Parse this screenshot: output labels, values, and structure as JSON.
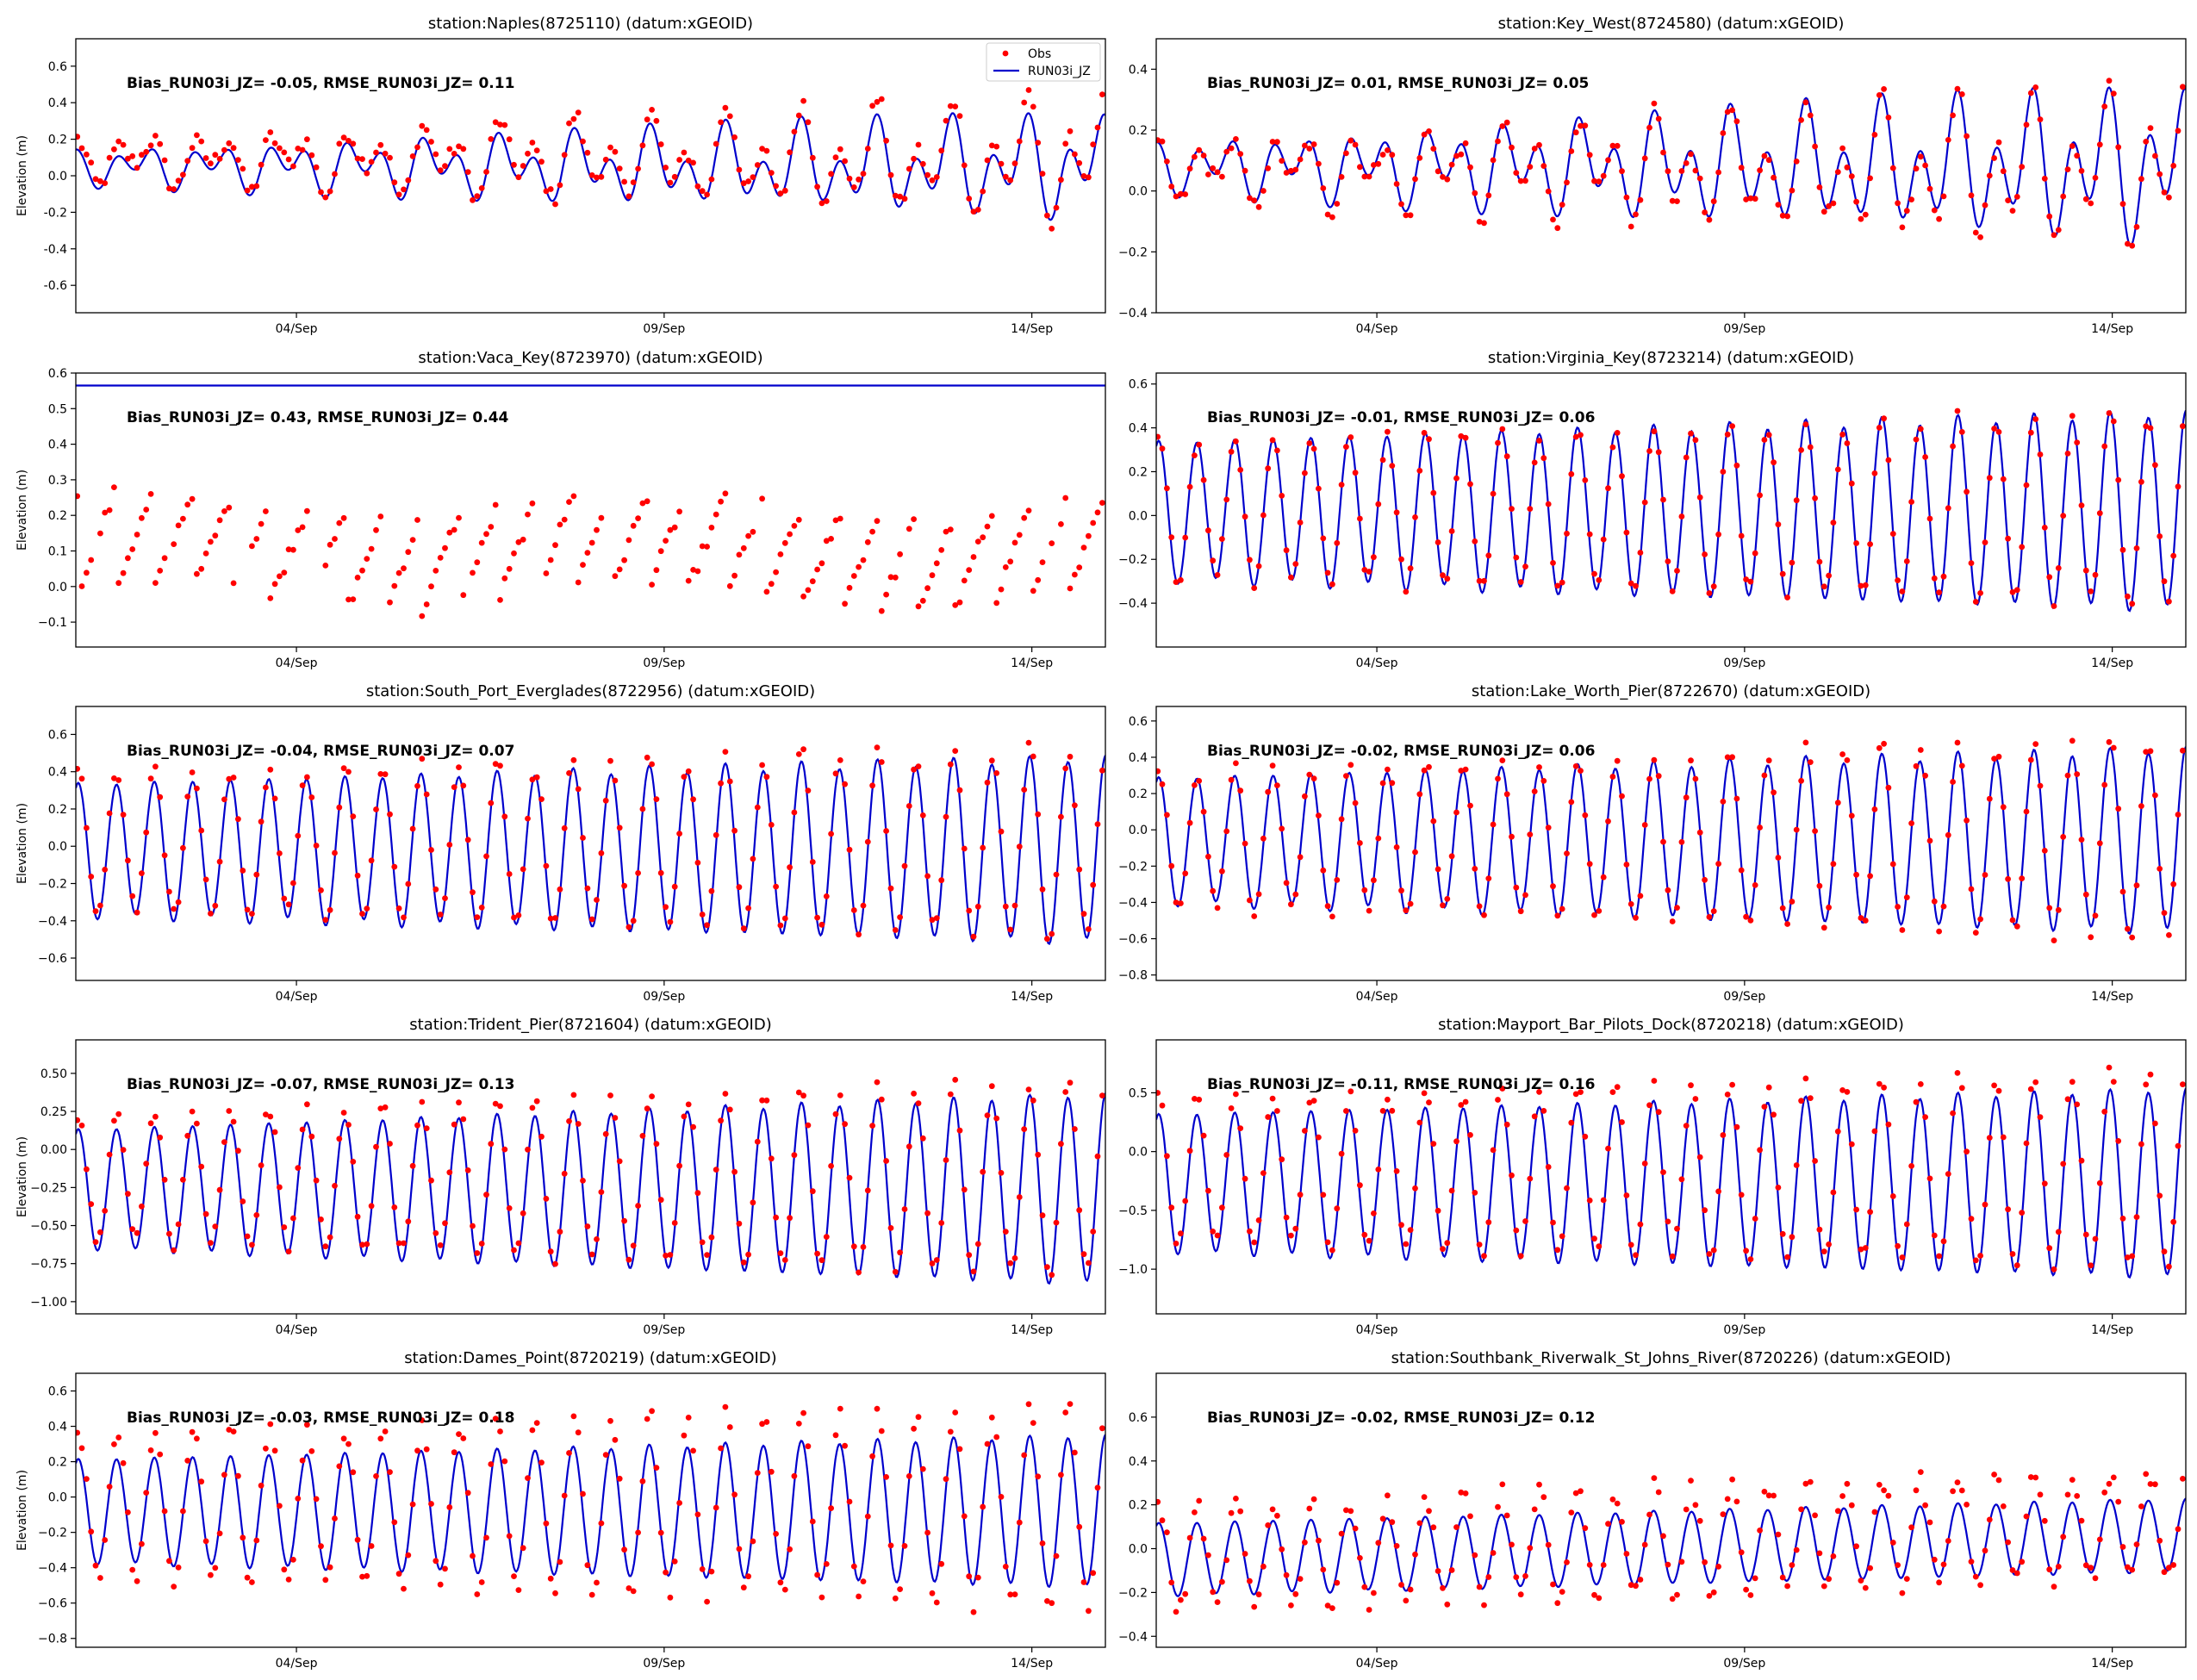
{
  "figure": {
    "ylabel": "Elevation (m)",
    "legend": {
      "obs_label": "Obs",
      "model_label": "RUN03i_JZ",
      "obs_color": "#ff0000",
      "model_color": "#0000cc",
      "placement": "top-right of first panel"
    }
  },
  "chart_data": [
    {
      "type": "line",
      "title": "station:Naples(8725110) (datum:xGEOID)",
      "stats": "Bias_RUN03i_JZ= -0.05, RMSE_RUN03i_JZ=  0.11",
      "xlabel": "",
      "ylabel": "Elevation (m)",
      "x_range_days": [
        1.0,
        15.0
      ],
      "xticks": [
        {
          "value": 4,
          "label": "04/Sep"
        },
        {
          "value": 9,
          "label": "09/Sep"
        },
        {
          "value": 14,
          "label": "14/Sep"
        }
      ],
      "ylim": [
        -0.75,
        0.75
      ],
      "yticks": [
        {
          "value": -0.6,
          "label": "-0.6"
        },
        {
          "value": -0.4,
          "label": "-0.4"
        },
        {
          "value": -0.2,
          "label": "-0.2"
        },
        {
          "value": 0.0,
          "label": "0.0"
        },
        {
          "value": 0.2,
          "label": "0.2"
        },
        {
          "value": 0.4,
          "label": "0.4"
        },
        {
          "value": 0.6,
          "label": "0.6"
        }
      ],
      "model": {
        "name": "RUN03i_JZ",
        "mean": 0.05,
        "amp_start": 0.12,
        "amp_end": 0.34,
        "semi_diurnal_share": 0.55,
        "flat": false
      },
      "obs": {
        "name": "Obs",
        "offset": 0.04,
        "amp_scale": 1.15,
        "noise": 0.05,
        "phase_shift": 0.08
      },
      "show_legend": true
    },
    {
      "type": "line",
      "title": "station:Key_West(8724580) (datum:xGEOID)",
      "stats": "Bias_RUN03i_JZ=  0.01, RMSE_RUN03i_JZ=  0.05",
      "xlabel": "",
      "ylabel": "",
      "x_range_days": [
        1.0,
        15.0
      ],
      "xticks": [
        {
          "value": 4,
          "label": "04/Sep"
        },
        {
          "value": 9,
          "label": "09/Sep"
        },
        {
          "value": 14,
          "label": "14/Sep"
        }
      ],
      "ylim": [
        -0.4,
        0.5
      ],
      "yticks": [
        {
          "value": -0.4,
          "label": "−0.4"
        },
        {
          "value": -0.2,
          "label": "−0.2"
        },
        {
          "value": 0.0,
          "label": "0.0"
        },
        {
          "value": 0.2,
          "label": "0.2"
        },
        {
          "value": 0.4,
          "label": "0.4"
        }
      ],
      "model": {
        "name": "RUN03i_JZ",
        "mean": 0.08,
        "amp_start": 0.1,
        "amp_end": 0.3,
        "semi_diurnal_share": 0.6,
        "flat": false
      },
      "obs": {
        "name": "Obs",
        "offset": -0.01,
        "amp_scale": 1.05,
        "noise": 0.03,
        "phase_shift": 0.05
      },
      "show_legend": false
    },
    {
      "type": "line",
      "title": "station:Vaca_Key(8723970) (datum:xGEOID)",
      "stats": "Bias_RUN03i_JZ=  0.43, RMSE_RUN03i_JZ=  0.44",
      "xlabel": "",
      "ylabel": "Elevation (m)",
      "x_range_days": [
        1.0,
        15.0
      ],
      "xticks": [
        {
          "value": 4,
          "label": "04/Sep"
        },
        {
          "value": 9,
          "label": "09/Sep"
        },
        {
          "value": 14,
          "label": "14/Sep"
        }
      ],
      "ylim": [
        -0.17,
        0.6
      ],
      "yticks": [
        {
          "value": -0.1,
          "label": "−0.1"
        },
        {
          "value": 0.0,
          "label": "0.0"
        },
        {
          "value": 0.1,
          "label": "0.1"
        },
        {
          "value": 0.2,
          "label": "0.2"
        },
        {
          "value": 0.3,
          "label": "0.3"
        },
        {
          "value": 0.4,
          "label": "0.4"
        },
        {
          "value": 0.5,
          "label": "0.5"
        },
        {
          "value": 0.6,
          "label": "0.6"
        }
      ],
      "model": {
        "name": "RUN03i_JZ",
        "mean": 0.565,
        "amp_start": 0.0,
        "amp_end": 0.0,
        "semi_diurnal_share": 0.0,
        "flat": true
      },
      "obs": {
        "name": "Obs",
        "offset": 0.0,
        "amp_scale": 1.0,
        "noise": 0.02,
        "phase_shift": 0.0,
        "sawtooth": true,
        "saw_mean": 0.1,
        "saw_amp": 0.14
      },
      "show_legend": false
    },
    {
      "type": "line",
      "title": "station:Virginia_Key(8723214) (datum:xGEOID)",
      "stats": "Bias_RUN03i_JZ= -0.01, RMSE_RUN03i_JZ=  0.06",
      "xlabel": "",
      "ylabel": "",
      "x_range_days": [
        1.0,
        15.0
      ],
      "xticks": [
        {
          "value": 4,
          "label": "04/Sep"
        },
        {
          "value": 9,
          "label": "09/Sep"
        },
        {
          "value": 14,
          "label": "14/Sep"
        }
      ],
      "ylim": [
        -0.6,
        0.65
      ],
      "yticks": [
        {
          "value": -0.4,
          "label": "−0.4"
        },
        {
          "value": -0.2,
          "label": "−0.2"
        },
        {
          "value": 0.0,
          "label": "0.0"
        },
        {
          "value": 0.2,
          "label": "0.2"
        },
        {
          "value": 0.4,
          "label": "0.4"
        },
        {
          "value": 0.6,
          "label": "0.6"
        }
      ],
      "model": {
        "name": "RUN03i_JZ",
        "mean": 0.02,
        "amp_start": 0.33,
        "amp_end": 0.47,
        "semi_diurnal_share": 0.95,
        "flat": false
      },
      "obs": {
        "name": "Obs",
        "offset": 0.01,
        "amp_scale": 0.97,
        "noise": 0.03,
        "phase_shift": 0.03
      },
      "show_legend": false
    },
    {
      "type": "line",
      "title": "station:South_Port_Everglades(8722956) (datum:xGEOID)",
      "stats": "Bias_RUN03i_JZ= -0.04, RMSE_RUN03i_JZ=  0.07",
      "xlabel": "",
      "ylabel": "Elevation (m)",
      "x_range_days": [
        1.0,
        15.0
      ],
      "xticks": [
        {
          "value": 4,
          "label": "04/Sep"
        },
        {
          "value": 9,
          "label": "09/Sep"
        },
        {
          "value": 14,
          "label": "14/Sep"
        }
      ],
      "ylim": [
        -0.72,
        0.75
      ],
      "yticks": [
        {
          "value": -0.6,
          "label": "−0.6"
        },
        {
          "value": -0.4,
          "label": "−0.4"
        },
        {
          "value": -0.2,
          "label": "−0.2"
        },
        {
          "value": 0.0,
          "label": "0.0"
        },
        {
          "value": 0.2,
          "label": "0.2"
        },
        {
          "value": 0.4,
          "label": "0.4"
        },
        {
          "value": 0.6,
          "label": "0.6"
        }
      ],
      "model": {
        "name": "RUN03i_JZ",
        "mean": -0.02,
        "amp_start": 0.37,
        "amp_end": 0.52,
        "semi_diurnal_share": 0.95,
        "flat": false
      },
      "obs": {
        "name": "Obs",
        "offset": 0.04,
        "amp_scale": 1.02,
        "noise": 0.04,
        "phase_shift": 0.03
      },
      "show_legend": false
    },
    {
      "type": "line",
      "title": "station:Lake_Worth_Pier(8722670) (datum:xGEOID)",
      "stats": "Bias_RUN03i_JZ= -0.02, RMSE_RUN03i_JZ=  0.06",
      "xlabel": "",
      "ylabel": "",
      "x_range_days": [
        1.0,
        15.0
      ],
      "xticks": [
        {
          "value": 4,
          "label": "04/Sep"
        },
        {
          "value": 9,
          "label": "09/Sep"
        },
        {
          "value": 14,
          "label": "14/Sep"
        }
      ],
      "ylim": [
        -0.83,
        0.68
      ],
      "yticks": [
        {
          "value": -0.8,
          "label": "−0.8"
        },
        {
          "value": -0.6,
          "label": "−0.6"
        },
        {
          "value": -0.4,
          "label": "−0.4"
        },
        {
          "value": -0.2,
          "label": "−0.2"
        },
        {
          "value": 0.0,
          "label": "0.0"
        },
        {
          "value": 0.2,
          "label": "0.2"
        },
        {
          "value": 0.4,
          "label": "0.4"
        },
        {
          "value": 0.6,
          "label": "0.6"
        }
      ],
      "model": {
        "name": "RUN03i_JZ",
        "mean": -0.06,
        "amp_start": 0.36,
        "amp_end": 0.53,
        "semi_diurnal_share": 0.95,
        "flat": false
      },
      "obs": {
        "name": "Obs",
        "offset": 0.01,
        "amp_scale": 1.08,
        "noise": 0.04,
        "phase_shift": 0.03
      },
      "show_legend": false
    },
    {
      "type": "line",
      "title": "station:Trident_Pier(8721604) (datum:xGEOID)",
      "stats": "Bias_RUN03i_JZ= -0.07, RMSE_RUN03i_JZ=  0.13",
      "xlabel": "",
      "ylabel": "Elevation (m)",
      "x_range_days": [
        1.0,
        15.0
      ],
      "xticks": [
        {
          "value": 4,
          "label": "04/Sep"
        },
        {
          "value": 9,
          "label": "09/Sep"
        },
        {
          "value": 14,
          "label": "14/Sep"
        }
      ],
      "ylim": [
        -1.08,
        0.72
      ],
      "yticks": [
        {
          "value": -1.0,
          "label": "−1.00"
        },
        {
          "value": -0.75,
          "label": "−0.75"
        },
        {
          "value": -0.5,
          "label": "−0.50"
        },
        {
          "value": -0.25,
          "label": "−0.25"
        },
        {
          "value": 0.0,
          "label": "0.00"
        },
        {
          "value": 0.25,
          "label": "0.25"
        },
        {
          "value": 0.5,
          "label": "0.50"
        }
      ],
      "model": {
        "name": "RUN03i_JZ",
        "mean": -0.26,
        "amp_start": 0.4,
        "amp_end": 0.64,
        "semi_diurnal_share": 0.97,
        "flat": false
      },
      "obs": {
        "name": "Obs",
        "offset": 0.07,
        "amp_scale": 1.03,
        "noise": 0.05,
        "phase_shift": 0.04
      },
      "show_legend": false
    },
    {
      "type": "line",
      "title": "station:Mayport_Bar_Pilots_Dock(8720218) (datum:xGEOID)",
      "stats": "Bias_RUN03i_JZ= -0.11, RMSE_RUN03i_JZ=  0.16",
      "xlabel": "",
      "ylabel": "",
      "x_range_days": [
        1.0,
        15.0
      ],
      "xticks": [
        {
          "value": 4,
          "label": "04/Sep"
        },
        {
          "value": 9,
          "label": "09/Sep"
        },
        {
          "value": 14,
          "label": "14/Sep"
        }
      ],
      "ylim": [
        -1.38,
        0.95
      ],
      "yticks": [
        {
          "value": -1.0,
          "label": "−1.0"
        },
        {
          "value": -0.5,
          "label": "−0.5"
        },
        {
          "value": 0.0,
          "label": "0.0"
        },
        {
          "value": 0.5,
          "label": "0.5"
        }
      ],
      "model": {
        "name": "RUN03i_JZ",
        "mean": -0.27,
        "amp_start": 0.6,
        "amp_end": 0.82,
        "semi_diurnal_share": 0.97,
        "flat": false
      },
      "obs": {
        "name": "Obs",
        "offset": 0.11,
        "amp_scale": 1.05,
        "noise": 0.06,
        "phase_shift": 0.04
      },
      "show_legend": false
    },
    {
      "type": "line",
      "title": "station:Dames_Point(8720219) (datum:xGEOID)",
      "stats": "Bias_RUN03i_JZ= -0.03, RMSE_RUN03i_JZ=  0.18",
      "xlabel": "",
      "ylabel": "Elevation (m)",
      "x_range_days": [
        1.0,
        15.0
      ],
      "xticks": [
        {
          "value": 4,
          "label": "04/Sep"
        },
        {
          "value": 9,
          "label": "09/Sep"
        },
        {
          "value": 14,
          "label": "14/Sep"
        }
      ],
      "ylim": [
        -0.85,
        0.7
      ],
      "yticks": [
        {
          "value": -0.8,
          "label": "−0.8"
        },
        {
          "value": -0.6,
          "label": "−0.6"
        },
        {
          "value": -0.4,
          "label": "−0.4"
        },
        {
          "value": -0.2,
          "label": "−0.2"
        },
        {
          "value": 0.0,
          "label": "0.0"
        },
        {
          "value": 0.2,
          "label": "0.2"
        },
        {
          "value": 0.4,
          "label": "0.4"
        },
        {
          "value": 0.6,
          "label": "0.6"
        }
      ],
      "model": {
        "name": "RUN03i_JZ",
        "mean": -0.08,
        "amp_start": 0.3,
        "amp_end": 0.44,
        "semi_diurnal_share": 0.97,
        "flat": false
      },
      "obs": {
        "name": "Obs",
        "offset": 0.03,
        "amp_scale": 1.35,
        "noise": 0.05,
        "phase_shift": 0.1
      },
      "show_legend": false
    },
    {
      "type": "line",
      "title": "station:Southbank_Riverwalk_St_Johns_River(8720226) (datum:xGEOID)",
      "stats": "Bias_RUN03i_JZ= -0.02, RMSE_RUN03i_JZ=  0.12",
      "xlabel": "",
      "ylabel": "",
      "x_range_days": [
        1.0,
        15.0
      ],
      "xticks": [
        {
          "value": 4,
          "label": "04/Sep"
        },
        {
          "value": 9,
          "label": "09/Sep"
        },
        {
          "value": 14,
          "label": "14/Sep"
        }
      ],
      "ylim": [
        -0.45,
        0.8
      ],
      "yticks": [
        {
          "value": -0.4,
          "label": "−0.4"
        },
        {
          "value": -0.2,
          "label": "−0.2"
        },
        {
          "value": 0.0,
          "label": "0.0"
        },
        {
          "value": 0.2,
          "label": "0.2"
        },
        {
          "value": 0.4,
          "label": "0.4"
        },
        {
          "value": 0.6,
          "label": "0.6"
        }
      ],
      "model": {
        "name": "RUN03i_JZ",
        "mean": -0.05,
        "amp_start": 0.17,
        "amp_end": 0.17,
        "semi_diurnal_share": 0.97,
        "flat": false,
        "trend_per_day": 0.008
      },
      "obs": {
        "name": "Obs",
        "offset": 0.0,
        "amp_scale": 1.45,
        "noise": 0.05,
        "phase_shift": 0.12,
        "trend_per_day": 0.012
      },
      "show_legend": false
    }
  ]
}
